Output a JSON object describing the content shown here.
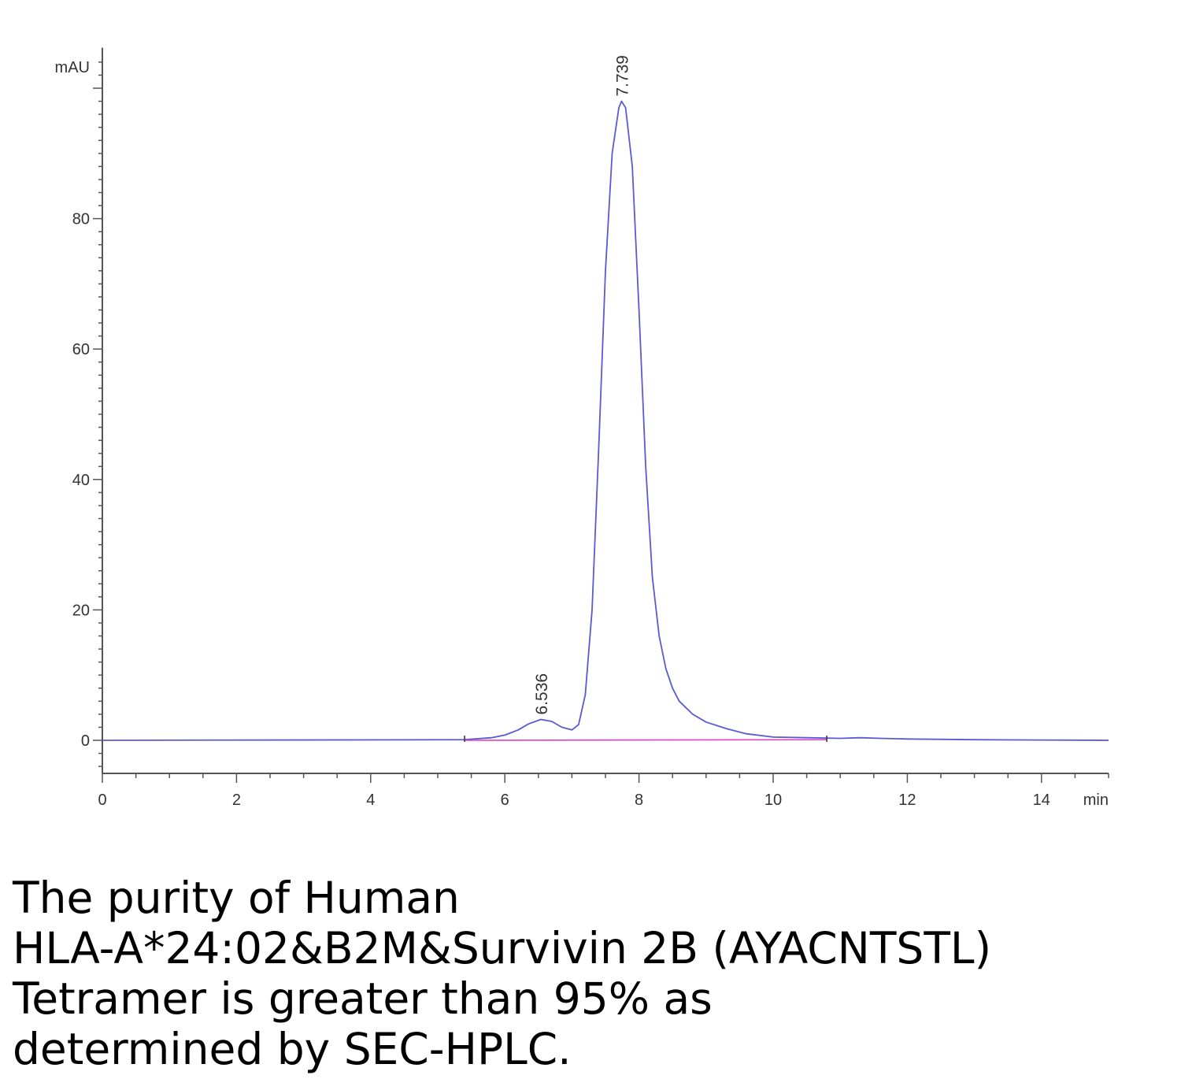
{
  "chart_data": {
    "type": "line",
    "title": "",
    "xlabel": "min",
    "ylabel": "mAU",
    "xlim": [
      0,
      15
    ],
    "ylim": [
      -5,
      105
    ],
    "x_ticks": [
      0,
      2,
      4,
      6,
      8,
      10,
      12,
      14
    ],
    "y_ticks": [
      0,
      20,
      40,
      60,
      80
    ],
    "grid": false,
    "peaks": [
      {
        "label": "6.536",
        "x": 6.536,
        "y": 3.2
      },
      {
        "label": "7.739",
        "x": 7.739,
        "y": 98
      }
    ],
    "series": [
      {
        "color": "#5a5ad2",
        "x": [
          0,
          5.4,
          5.8,
          6.0,
          6.2,
          6.35,
          6.536,
          6.7,
          6.85,
          7.0,
          7.1,
          7.2,
          7.3,
          7.4,
          7.5,
          7.6,
          7.7,
          7.739,
          7.8,
          7.9,
          8.0,
          8.1,
          8.2,
          8.3,
          8.4,
          8.5,
          8.6,
          8.8,
          9.0,
          9.3,
          9.6,
          10.0,
          10.5,
          11.0,
          11.3,
          11.6,
          12.0,
          13.0,
          14.0,
          15.0
        ],
        "y": [
          0,
          0.1,
          0.4,
          0.8,
          1.6,
          2.5,
          3.2,
          2.9,
          2.0,
          1.6,
          2.4,
          7,
          20,
          45,
          72,
          90,
          97,
          98,
          97,
          88,
          66,
          42,
          25,
          16,
          11,
          8,
          6,
          4,
          2.8,
          1.8,
          1.0,
          0.5,
          0.4,
          0.3,
          0.4,
          0.3,
          0.2,
          0.1,
          0.05,
          0
        ]
      },
      {
        "color": "#e040c8",
        "x": [
          5.4,
          10.8
        ],
        "y": [
          0,
          0.1
        ]
      }
    ]
  },
  "caption": {
    "line1": "The purity of Human",
    "line2": "HLA-A*24:02&B2M&Survivin 2B (AYACNTSTL)",
    "line3": "Tetramer is greater than 95% as",
    "line4": "determined by SEC-HPLC."
  }
}
